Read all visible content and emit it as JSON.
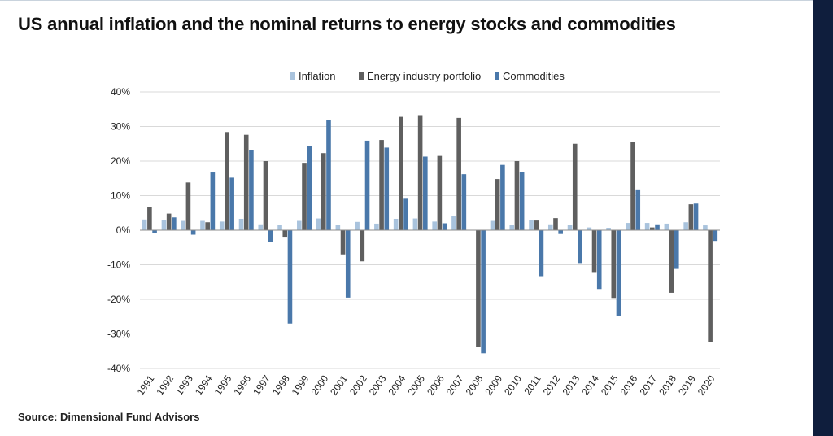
{
  "title": "US annual inflation and the nominal returns to energy stocks and commodities",
  "source": "Source: Dimensional Fund Advisors",
  "chart_data": {
    "type": "bar",
    "title": "US annual inflation and the nominal returns to energy stocks and commodities",
    "legend_position": "top-center",
    "grid": true,
    "ylim": [
      -40,
      40
    ],
    "yticks": [
      40,
      30,
      20,
      10,
      0,
      -10,
      -20,
      -30,
      -40
    ],
    "ytick_labels": [
      "40%",
      "30%",
      "20%",
      "10%",
      "0%",
      "-10%",
      "-20%",
      "-30%",
      "-40%"
    ],
    "categories": [
      "1991",
      "1992",
      "1993",
      "1994",
      "1995",
      "1996",
      "1997",
      "1998",
      "1999",
      "2000",
      "2001",
      "2002",
      "2003",
      "2004",
      "2005",
      "2006",
      "2007",
      "2008",
      "2009",
      "2010",
      "2011",
      "2012",
      "2013",
      "2014",
      "2015",
      "2016",
      "2017",
      "2018",
      "2019",
      "2020"
    ],
    "series": [
      {
        "name": "Inflation",
        "color": "#a9c3dd",
        "values": [
          3.1,
          2.9,
          2.7,
          2.7,
          2.5,
          3.3,
          1.7,
          1.6,
          2.7,
          3.4,
          1.6,
          2.4,
          1.9,
          3.3,
          3.4,
          2.5,
          4.1,
          0.1,
          2.7,
          1.5,
          3.0,
          1.7,
          1.5,
          0.8,
          0.7,
          2.1,
          2.1,
          1.9,
          2.3,
          1.4
        ]
      },
      {
        "name": "Energy industry portfolio",
        "color": "#5f5f5f",
        "values": [
          6.6,
          4.8,
          13.8,
          2.3,
          28.4,
          27.6,
          20.0,
          -1.9,
          19.5,
          22.3,
          -7.0,
          -9.0,
          26.1,
          32.8,
          33.3,
          21.5,
          32.5,
          -33.8,
          14.8,
          20.0,
          2.8,
          3.5,
          25.0,
          -12.1,
          -19.6,
          25.6,
          0.8,
          -18.1,
          7.5,
          -32.3
        ]
      },
      {
        "name": "Commodities",
        "color": "#4a78aa",
        "values": [
          -0.8,
          3.7,
          -1.3,
          16.7,
          15.2,
          23.2,
          -3.5,
          -27.0,
          24.3,
          31.8,
          -19.5,
          25.9,
          23.9,
          9.1,
          21.3,
          2.0,
          16.2,
          -35.6,
          18.9,
          16.8,
          -13.3,
          -1.1,
          -9.5,
          -17.0,
          -24.7,
          11.8,
          1.7,
          -11.2,
          7.7,
          -3.1
        ]
      }
    ]
  }
}
